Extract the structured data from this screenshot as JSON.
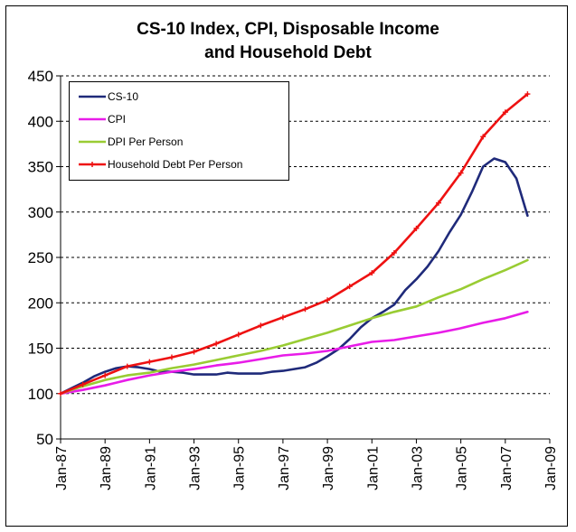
{
  "chart_data": {
    "type": "line",
    "title_line1": "CS-10 Index, CPI, Disposable Income",
    "title_line2": "and Household Debt",
    "xlabel": "",
    "ylabel": "",
    "ylim": [
      50,
      450
    ],
    "yticks": [
      50,
      100,
      150,
      200,
      250,
      300,
      350,
      400,
      450
    ],
    "xlim": [
      1987.0,
      2009.0
    ],
    "xticks": [
      {
        "x": 1987.0,
        "label": "Jan-87"
      },
      {
        "x": 1989.0,
        "label": "Jan-89"
      },
      {
        "x": 1991.0,
        "label": "Jan-91"
      },
      {
        "x": 1993.0,
        "label": "Jan-93"
      },
      {
        "x": 1995.0,
        "label": "Jan-95"
      },
      {
        "x": 1997.0,
        "label": "Jan-97"
      },
      {
        "x": 1999.0,
        "label": "Jan-99"
      },
      {
        "x": 2001.0,
        "label": "Jan-01"
      },
      {
        "x": 2003.0,
        "label": "Jan-03"
      },
      {
        "x": 2005.0,
        "label": "Jan-05"
      },
      {
        "x": 2007.0,
        "label": "Jan-07"
      },
      {
        "x": 2009.0,
        "label": "Jan-09"
      }
    ],
    "grid": "horizontal dashed",
    "legend_position": "top-left",
    "series": [
      {
        "name": "CS-10",
        "color": "#1f2a7a",
        "x": [
          1987.0,
          1987.5,
          1988.0,
          1988.5,
          1989.0,
          1989.5,
          1990.0,
          1990.5,
          1991.0,
          1991.5,
          1992.0,
          1992.5,
          1993.0,
          1993.5,
          1994.0,
          1994.5,
          1995.0,
          1995.5,
          1996.0,
          1996.5,
          1997.0,
          1997.5,
          1998.0,
          1998.5,
          1999.0,
          1999.5,
          2000.0,
          2000.5,
          2001.0,
          2001.5,
          2002.0,
          2002.5,
          2003.0,
          2003.5,
          2004.0,
          2004.5,
          2005.0,
          2005.5,
          2006.0,
          2006.5,
          2007.0,
          2007.5,
          2008.0
        ],
        "values": [
          100,
          106,
          112,
          119,
          124,
          128,
          130,
          129,
          127,
          124,
          124,
          123,
          121,
          121,
          121,
          123,
          122,
          122,
          122,
          124,
          125,
          127,
          129,
          134,
          141,
          149,
          160,
          173,
          183,
          190,
          198,
          214,
          226,
          240,
          257,
          278,
          297,
          322,
          350,
          359,
          355,
          337,
          296
        ]
      },
      {
        "name": "CPI",
        "color": "#e81ce8",
        "x": [
          1987.0,
          1988.0,
          1989.0,
          1990.0,
          1991.0,
          1992.0,
          1993.0,
          1994.0,
          1995.0,
          1996.0,
          1997.0,
          1998.0,
          1999.0,
          2000.0,
          2001.0,
          2002.0,
          2003.0,
          2004.0,
          2005.0,
          2006.0,
          2007.0,
          2008.0
        ],
        "values": [
          100,
          104,
          109,
          115,
          120,
          124,
          127,
          131,
          134,
          138,
          142,
          144,
          147,
          152,
          157,
          159,
          163,
          167,
          172,
          178,
          183,
          190
        ]
      },
      {
        "name": "DPI Per Person",
        "color": "#99cc33",
        "x": [
          1987.0,
          1988.0,
          1989.0,
          1990.0,
          1991.0,
          1992.0,
          1993.0,
          1994.0,
          1995.0,
          1996.0,
          1997.0,
          1998.0,
          1999.0,
          2000.0,
          2001.0,
          2002.0,
          2003.0,
          2004.0,
          2005.0,
          2006.0,
          2007.0,
          2008.0
        ],
        "values": [
          100,
          108,
          115,
          120,
          123,
          128,
          132,
          137,
          142,
          147,
          153,
          160,
          167,
          175,
          183,
          190,
          196,
          206,
          215,
          226,
          236,
          247
        ]
      },
      {
        "name": "Household Debt Per Person",
        "color": "#ee1111",
        "x": [
          1987.0,
          1988.0,
          1989.0,
          1990.0,
          1991.0,
          1992.0,
          1993.0,
          1994.0,
          1995.0,
          1996.0,
          1997.0,
          1998.0,
          1999.0,
          2000.0,
          2001.0,
          2002.0,
          2003.0,
          2004.0,
          2005.0,
          2006.0,
          2007.0,
          2008.0
        ],
        "values": [
          100,
          110,
          120,
          130,
          135,
          140,
          146,
          155,
          165,
          175,
          184,
          193,
          203,
          218,
          233,
          255,
          282,
          310,
          343,
          383,
          410,
          430
        ]
      }
    ]
  }
}
